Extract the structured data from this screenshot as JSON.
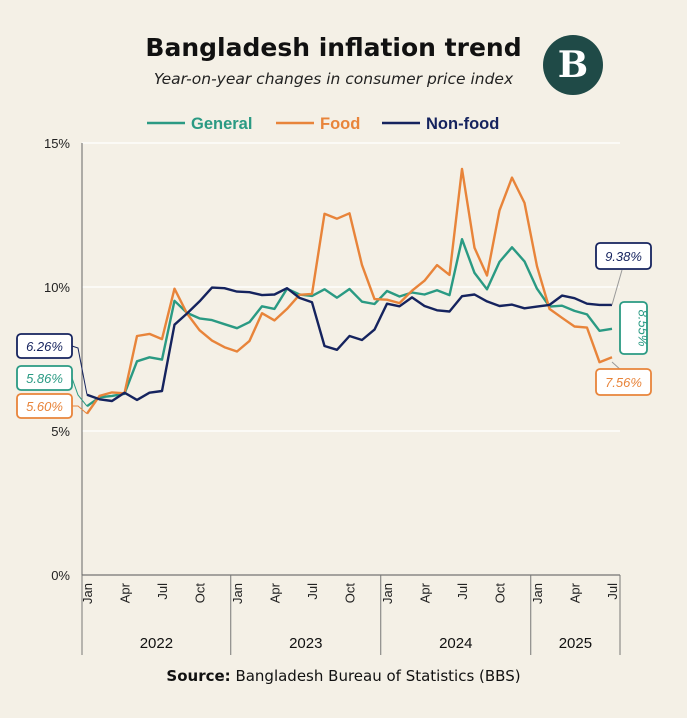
{
  "header": {
    "title": "Bangladesh inflation trend",
    "subtitle": "Year-on-year changes in consumer price index",
    "logo_text": "B"
  },
  "footer": {
    "source_label": "Source:",
    "source_text": "Bangladesh Bureau of Statistics (BBS)"
  },
  "chart_data": {
    "type": "line",
    "title": "Bangladesh inflation trend",
    "subtitle": "Year-on-year changes in consumer price index",
    "xlabel": "",
    "ylabel": "",
    "ylim": [
      0,
      15
    ],
    "yticks": [
      0,
      5,
      10,
      15
    ],
    "ytick_labels": [
      "0%",
      "5%",
      "10%",
      "15%"
    ],
    "grid": "horizontal",
    "legend_position": "top",
    "x_month_labels": [
      {
        "index": 0,
        "label": "Jan"
      },
      {
        "index": 3,
        "label": "Apr"
      },
      {
        "index": 6,
        "label": "Jul"
      },
      {
        "index": 9,
        "label": "Oct"
      },
      {
        "index": 12,
        "label": "Jan"
      },
      {
        "index": 15,
        "label": "Apr"
      },
      {
        "index": 18,
        "label": "Jul"
      },
      {
        "index": 21,
        "label": "Oct"
      },
      {
        "index": 24,
        "label": "Jan"
      },
      {
        "index": 27,
        "label": "Apr"
      },
      {
        "index": 30,
        "label": "Jul"
      },
      {
        "index": 33,
        "label": "Oct"
      },
      {
        "index": 36,
        "label": "Jan"
      },
      {
        "index": 39,
        "label": "Apr"
      },
      {
        "index": 42,
        "label": "Jul"
      }
    ],
    "years": [
      {
        "label": "2022",
        "start": 0,
        "end": 11
      },
      {
        "label": "2023",
        "start": 12,
        "end": 23
      },
      {
        "label": "2024",
        "start": 24,
        "end": 35
      },
      {
        "label": "2025",
        "start": 36,
        "end": 42
      }
    ],
    "series": [
      {
        "name": "General",
        "color": "#2a9a83",
        "values": [
          5.86,
          6.17,
          6.22,
          6.29,
          7.42,
          7.56,
          7.48,
          9.52,
          9.1,
          8.91,
          8.85,
          8.71,
          8.57,
          8.78,
          9.33,
          9.24,
          9.94,
          9.74,
          9.69,
          9.92,
          9.63,
          9.93,
          9.49,
          9.41,
          9.86,
          9.67,
          9.81,
          9.74,
          9.89,
          9.72,
          11.66,
          10.49,
          9.92,
          10.87,
          11.38,
          10.89,
          9.94,
          9.32,
          9.35,
          9.17,
          9.05,
          8.48,
          8.55
        ],
        "start_label": "5.86%",
        "end_label": "8.55%"
      },
      {
        "name": "Food",
        "color": "#e8843a",
        "values": [
          5.6,
          6.22,
          6.34,
          6.31,
          8.3,
          8.37,
          8.19,
          9.94,
          9.08,
          8.5,
          8.14,
          7.91,
          7.76,
          8.13,
          9.09,
          8.84,
          9.24,
          9.73,
          9.76,
          12.54,
          12.37,
          12.56,
          10.76,
          9.58,
          9.56,
          9.44,
          9.87,
          10.22,
          10.76,
          10.42,
          14.1,
          11.36,
          10.4,
          12.66,
          13.8,
          12.92,
          10.72,
          9.24,
          8.93,
          8.63,
          8.59,
          7.39,
          7.56
        ],
        "start_label": "5.60%",
        "end_label": "7.56%"
      },
      {
        "name": "Non-food",
        "color": "#15235e",
        "values": [
          6.26,
          6.1,
          6.04,
          6.33,
          6.08,
          6.33,
          6.39,
          8.69,
          9.08,
          9.5,
          9.98,
          9.96,
          9.84,
          9.82,
          9.72,
          9.74,
          9.96,
          9.62,
          9.47,
          7.95,
          7.82,
          8.3,
          8.16,
          8.52,
          9.42,
          9.33,
          9.64,
          9.34,
          9.19,
          9.15,
          9.68,
          9.74,
          9.5,
          9.34,
          9.39,
          9.26,
          9.32,
          9.38,
          9.7,
          9.61,
          9.42,
          9.38,
          9.38
        ],
        "start_label": "6.26%",
        "end_label": "9.38%"
      }
    ]
  }
}
